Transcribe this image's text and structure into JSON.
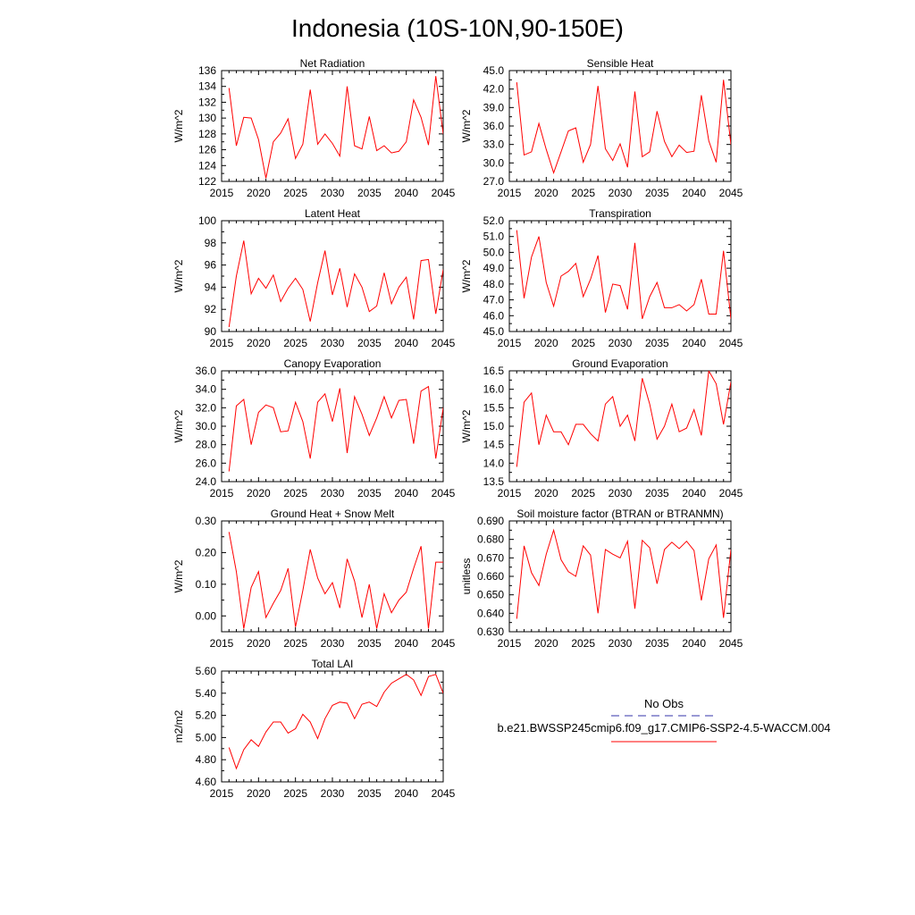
{
  "title": "Indonesia (10S-10N,90-150E)",
  "series_color": "#ff0000",
  "chart_data": [
    {
      "type": "line",
      "title": "Net Radiation",
      "ylabel": "W/m^2",
      "xlim": [
        2015,
        2045
      ],
      "ylim": [
        122,
        136
      ],
      "x_ticks": [
        2015,
        2020,
        2025,
        2030,
        2035,
        2040,
        2045
      ],
      "y_ticks": [
        122,
        124,
        126,
        128,
        130,
        132,
        134,
        136
      ],
      "y_decimals": 0,
      "grid": false,
      "x": [
        2016,
        2017,
        2018,
        2019,
        2020,
        2021,
        2022,
        2023,
        2024,
        2025,
        2026,
        2027,
        2028,
        2029,
        2030,
        2031,
        2032,
        2033,
        2034,
        2035,
        2036,
        2037,
        2038,
        2039,
        2040,
        2041,
        2042,
        2043,
        2044,
        2045
      ],
      "values": [
        133.8,
        126.5,
        130.1,
        130.0,
        127.3,
        122.4,
        127.0,
        128.1,
        129.9,
        124.9,
        126.7,
        133.6,
        126.7,
        128.0,
        126.8,
        125.2,
        134.0,
        126.5,
        126.1,
        130.2,
        125.9,
        126.5,
        125.6,
        125.8,
        127.0,
        132.3,
        130.1,
        126.6,
        135.3,
        128.0
      ]
    },
    {
      "type": "line",
      "title": "Sensible Heat",
      "ylabel": "W/m^2",
      "xlim": [
        2015,
        2045
      ],
      "ylim": [
        27,
        45
      ],
      "x_ticks": [
        2015,
        2020,
        2025,
        2030,
        2035,
        2040,
        2045
      ],
      "y_ticks": [
        27,
        30,
        33,
        36,
        39,
        42,
        45
      ],
      "y_decimals": 1,
      "grid": false,
      "x": [
        2016,
        2017,
        2018,
        2019,
        2020,
        2021,
        2022,
        2023,
        2024,
        2025,
        2026,
        2027,
        2028,
        2029,
        2030,
        2031,
        2032,
        2033,
        2034,
        2035,
        2036,
        2037,
        2038,
        2039,
        2040,
        2041,
        2042,
        2043,
        2044,
        2045
      ],
      "values": [
        43.1,
        31.3,
        31.8,
        36.4,
        32.2,
        28.4,
        31.8,
        35.2,
        35.7,
        30.1,
        33.0,
        42.5,
        32.3,
        30.4,
        33.1,
        29.3,
        41.6,
        31.0,
        31.8,
        38.4,
        33.5,
        31.0,
        32.9,
        31.7,
        31.9,
        41.0,
        33.6,
        30.1,
        43.5,
        33.0
      ]
    },
    {
      "type": "line",
      "title": "Latent Heat",
      "ylabel": "W/m^2",
      "xlim": [
        2015,
        2045
      ],
      "ylim": [
        90,
        100
      ],
      "x_ticks": [
        2015,
        2020,
        2025,
        2030,
        2035,
        2040,
        2045
      ],
      "y_ticks": [
        90,
        92,
        94,
        96,
        98,
        100
      ],
      "y_decimals": 0,
      "grid": false,
      "x": [
        2016,
        2017,
        2018,
        2019,
        2020,
        2021,
        2022,
        2023,
        2024,
        2025,
        2026,
        2027,
        2028,
        2029,
        2030,
        2031,
        2032,
        2033,
        2034,
        2035,
        2036,
        2037,
        2038,
        2039,
        2040,
        2041,
        2042,
        2043,
        2044,
        2045
      ],
      "values": [
        90.4,
        95.0,
        98.2,
        93.4,
        94.8,
        93.9,
        95.1,
        92.7,
        93.9,
        94.8,
        93.8,
        90.9,
        94.4,
        97.3,
        93.3,
        95.7,
        92.2,
        95.2,
        94.0,
        91.8,
        92.3,
        95.3,
        92.5,
        94.0,
        94.9,
        91.1,
        96.4,
        96.5,
        91.6,
        95.6
      ]
    },
    {
      "type": "line",
      "title": "Transpiration",
      "ylabel": "W/m^2",
      "xlim": [
        2015,
        2045
      ],
      "ylim": [
        45,
        52
      ],
      "x_ticks": [
        2015,
        2020,
        2025,
        2030,
        2035,
        2040,
        2045
      ],
      "y_ticks": [
        45,
        46,
        47,
        48,
        49,
        50,
        51,
        52
      ],
      "y_decimals": 1,
      "grid": false,
      "x": [
        2016,
        2017,
        2018,
        2019,
        2020,
        2021,
        2022,
        2023,
        2024,
        2025,
        2026,
        2027,
        2028,
        2029,
        2030,
        2031,
        2032,
        2033,
        2034,
        2035,
        2036,
        2037,
        2038,
        2039,
        2040,
        2041,
        2042,
        2043,
        2044,
        2045
      ],
      "values": [
        51.4,
        47.1,
        49.7,
        51.0,
        48.1,
        46.6,
        48.5,
        48.8,
        49.3,
        47.2,
        48.3,
        49.8,
        46.2,
        48.0,
        47.9,
        46.4,
        50.6,
        45.8,
        47.2,
        48.1,
        46.5,
        46.5,
        46.7,
        46.3,
        46.7,
        48.3,
        46.1,
        46.1,
        50.1,
        45.8
      ]
    },
    {
      "type": "line",
      "title": "Canopy Evaporation",
      "ylabel": "W/m^2",
      "xlim": [
        2015,
        2045
      ],
      "ylim": [
        24,
        36
      ],
      "x_ticks": [
        2015,
        2020,
        2025,
        2030,
        2035,
        2040,
        2045
      ],
      "y_ticks": [
        24,
        26,
        28,
        30,
        32,
        34,
        36
      ],
      "y_decimals": 1,
      "grid": false,
      "x": [
        2016,
        2017,
        2018,
        2019,
        2020,
        2021,
        2022,
        2023,
        2024,
        2025,
        2026,
        2027,
        2028,
        2029,
        2030,
        2031,
        2032,
        2033,
        2034,
        2035,
        2036,
        2037,
        2038,
        2039,
        2040,
        2041,
        2042,
        2043,
        2044,
        2045
      ],
      "values": [
        25.1,
        32.2,
        32.9,
        28.0,
        31.5,
        32.3,
        32.0,
        29.4,
        29.5,
        32.6,
        30.5,
        26.5,
        32.6,
        33.5,
        30.5,
        34.1,
        27.1,
        33.2,
        31.3,
        29.0,
        30.9,
        33.2,
        30.9,
        32.8,
        32.9,
        28.1,
        33.8,
        34.3,
        26.5,
        32.0
      ]
    },
    {
      "type": "line",
      "title": "Ground Evaporation",
      "ylabel": "W/m^2",
      "xlim": [
        2015,
        2045
      ],
      "ylim": [
        13.5,
        16.5
      ],
      "x_ticks": [
        2015,
        2020,
        2025,
        2030,
        2035,
        2040,
        2045
      ],
      "y_ticks": [
        13.5,
        14.0,
        14.5,
        15.0,
        15.5,
        16.0,
        16.5
      ],
      "y_decimals": 1,
      "grid": false,
      "x": [
        2016,
        2017,
        2018,
        2019,
        2020,
        2021,
        2022,
        2023,
        2024,
        2025,
        2026,
        2027,
        2028,
        2029,
        2030,
        2031,
        2032,
        2033,
        2034,
        2035,
        2036,
        2037,
        2038,
        2039,
        2040,
        2041,
        2042,
        2043,
        2044,
        2045
      ],
      "values": [
        13.9,
        15.65,
        15.9,
        14.5,
        15.3,
        14.85,
        14.85,
        14.5,
        15.05,
        15.05,
        14.8,
        14.6,
        15.6,
        15.8,
        15.0,
        15.3,
        14.6,
        16.3,
        15.6,
        14.65,
        15.0,
        15.6,
        14.85,
        14.95,
        15.45,
        14.75,
        16.5,
        16.15,
        15.05,
        16.2
      ]
    },
    {
      "type": "line",
      "title": "Ground Heat + Snow Melt",
      "ylabel": "W/m^2",
      "xlim": [
        2015,
        2045
      ],
      "ylim": [
        -0.05,
        0.3
      ],
      "x_ticks": [
        2015,
        2020,
        2025,
        2030,
        2035,
        2040,
        2045
      ],
      "y_ticks": [
        0.0,
        0.1,
        0.2,
        0.3
      ],
      "y_decimals": 2,
      "grid": false,
      "x": [
        2016,
        2017,
        2018,
        2019,
        2020,
        2021,
        2022,
        2023,
        2024,
        2025,
        2026,
        2027,
        2028,
        2029,
        2030,
        2031,
        2032,
        2033,
        2034,
        2035,
        2036,
        2037,
        2038,
        2039,
        2040,
        2041,
        2042,
        2043,
        2044,
        2045
      ],
      "values": [
        0.265,
        0.14,
        -0.04,
        0.09,
        0.14,
        -0.005,
        0.04,
        0.08,
        0.15,
        -0.035,
        0.08,
        0.21,
        0.12,
        0.07,
        0.105,
        0.025,
        0.18,
        0.11,
        -0.005,
        0.1,
        -0.04,
        0.07,
        0.01,
        0.05,
        0.075,
        0.15,
        0.22,
        -0.04,
        0.17,
        0.17
      ]
    },
    {
      "type": "line",
      "title": "Soil moisture factor (BTRAN or BTRANMN)",
      "ylabel": "unitless",
      "xlim": [
        2015,
        2045
      ],
      "ylim": [
        0.63,
        0.69
      ],
      "x_ticks": [
        2015,
        2020,
        2025,
        2030,
        2035,
        2040,
        2045
      ],
      "y_ticks": [
        0.63,
        0.64,
        0.65,
        0.66,
        0.67,
        0.68,
        0.69
      ],
      "y_decimals": 3,
      "grid": false,
      "x": [
        2016,
        2017,
        2018,
        2019,
        2020,
        2021,
        2022,
        2023,
        2024,
        2025,
        2026,
        2027,
        2028,
        2029,
        2030,
        2031,
        2032,
        2033,
        2034,
        2035,
        2036,
        2037,
        2038,
        2039,
        2040,
        2041,
        2042,
        2043,
        2044,
        2045
      ],
      "values": [
        0.637,
        0.6765,
        0.662,
        0.655,
        0.672,
        0.685,
        0.669,
        0.6625,
        0.66,
        0.6765,
        0.6715,
        0.64,
        0.6745,
        0.672,
        0.67,
        0.679,
        0.6425,
        0.6795,
        0.6755,
        0.656,
        0.6745,
        0.6785,
        0.675,
        0.679,
        0.674,
        0.647,
        0.6695,
        0.677,
        0.6375,
        0.6745
      ]
    },
    {
      "type": "line",
      "title": "Total LAI",
      "ylabel": "m2/m2",
      "xlim": [
        2015,
        2045
      ],
      "ylim": [
        4.6,
        5.6
      ],
      "x_ticks": [
        2015,
        2020,
        2025,
        2030,
        2035,
        2040,
        2045
      ],
      "y_ticks": [
        4.6,
        4.8,
        5.0,
        5.2,
        5.4,
        5.6
      ],
      "y_decimals": 2,
      "grid": false,
      "x": [
        2016,
        2017,
        2018,
        2019,
        2020,
        2021,
        2022,
        2023,
        2024,
        2025,
        2026,
        2027,
        2028,
        2029,
        2030,
        2031,
        2032,
        2033,
        2034,
        2035,
        2036,
        2037,
        2038,
        2039,
        2040,
        2041,
        2042,
        2043,
        2044,
        2045
      ],
      "values": [
        4.91,
        4.72,
        4.89,
        4.98,
        4.92,
        5.05,
        5.14,
        5.14,
        5.04,
        5.08,
        5.21,
        5.14,
        4.99,
        5.17,
        5.29,
        5.32,
        5.31,
        5.17,
        5.3,
        5.32,
        5.28,
        5.41,
        5.49,
        5.53,
        5.57,
        5.52,
        5.38,
        5.55,
        5.57,
        5.4
      ]
    }
  ],
  "legend": {
    "obs_label": "No Obs",
    "obs_color": "#3333aa",
    "model_label": "b.e21.BWSSP245cmip6.f09_g17.CMIP6-SSP2-4.5-WACCM.004",
    "model_color": "#ff0000"
  }
}
